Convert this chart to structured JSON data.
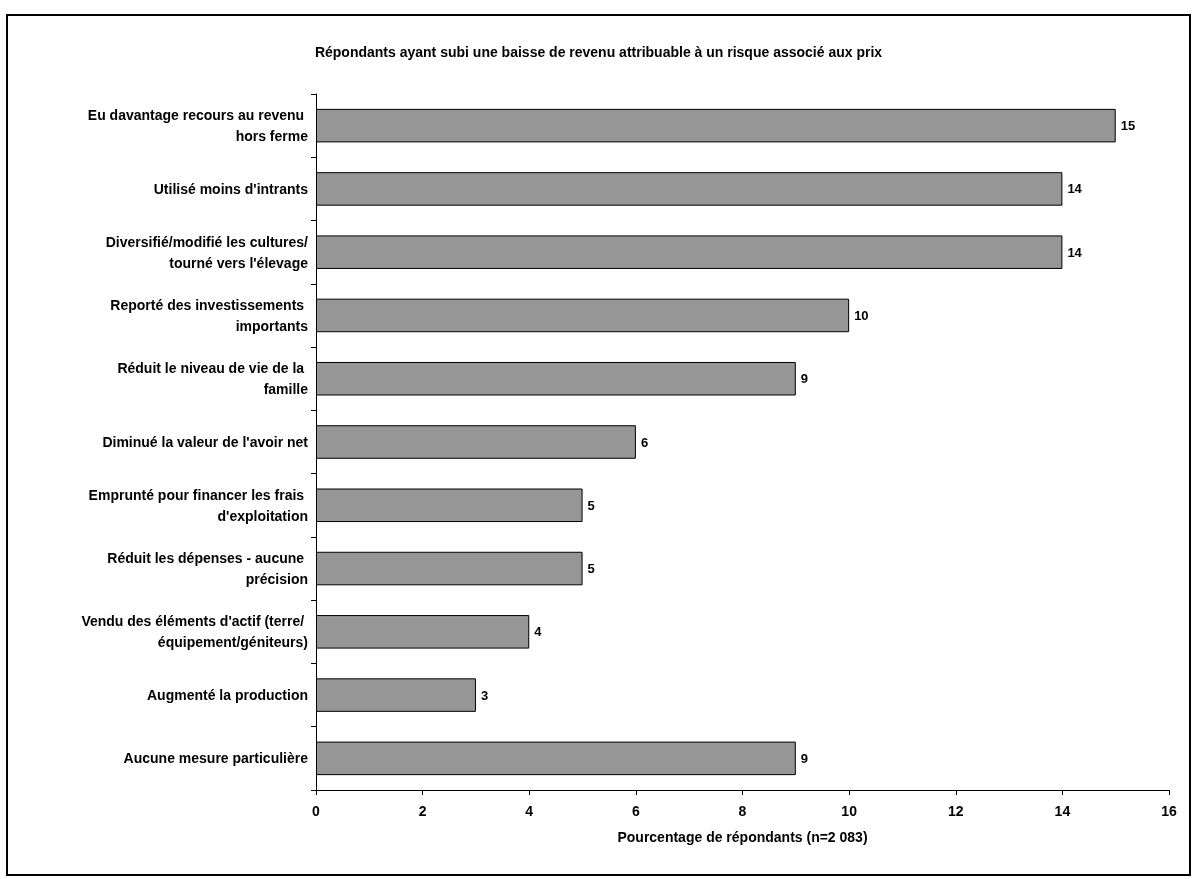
{
  "chart_data": {
    "type": "bar",
    "orientation": "horizontal",
    "title": "Répondants ayant subi une baisse de revenu attribuable à un risque associé aux prix",
    "xlabel": "Pourcentage de répondants (n=2 083)",
    "categories": [
      "Eu davantage recours au revenu hors ferme",
      "Utilisé moins d'intrants",
      "Diversifié/modifié les cultures/tourné vers l'élevage",
      "Reporté des investissements importants",
      "Réduit le niveau de vie de la famille",
      "Diminué la valeur de l'avoir net",
      "Emprunté pour financer les frais d'exploitation",
      "Réduit les dépenses - aucune précision",
      "Vendu des éléments d'actif (terre/ équipement/géniteurs)",
      "Augmenté la production",
      "Aucune mesure particulière"
    ],
    "values": [
      15,
      14,
      14,
      10,
      9,
      6,
      5,
      5,
      4,
      3,
      9
    ],
    "color": "#969696",
    "xlim": [
      0,
      16
    ],
    "xticks": [
      0,
      2,
      4,
      6,
      8,
      10,
      12,
      14,
      16
    ],
    "grid": false,
    "data_labels": true
  }
}
